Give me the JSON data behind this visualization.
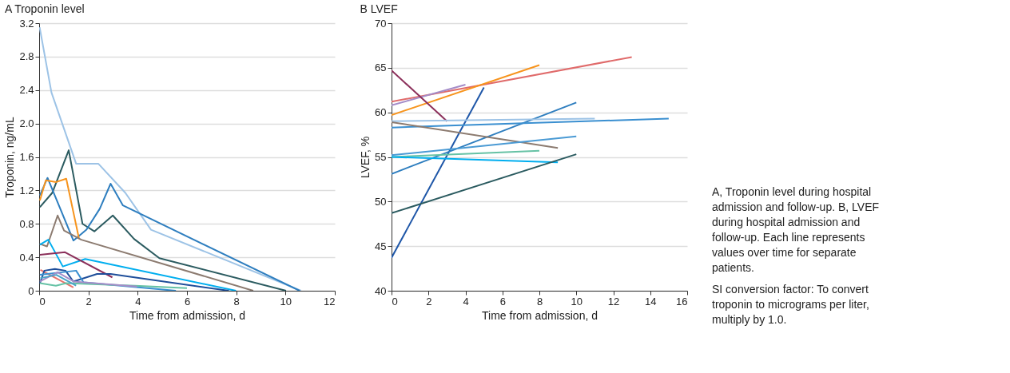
{
  "chart_data": [
    {
      "type": "line",
      "title": "A  Troponin level",
      "xlabel": "Time from admission, d",
      "ylabel": "Troponin, ng/mL",
      "xlim": [
        0,
        12
      ],
      "xticks": [
        0,
        2,
        4,
        6,
        8,
        10,
        12
      ],
      "ylim": [
        0,
        3.2
      ],
      "yticks": [
        0,
        0.4,
        0.8,
        1.2,
        1.6,
        {
          "value": 2,
          "label": "2.0"
        },
        2.4,
        2.8,
        3.2
      ],
      "grid": "y",
      "legend": false,
      "series": [
        {
          "color": "#9dc3e6",
          "x": [
            0.02,
            0.5,
            1.5,
            2.4,
            3.5,
            4.54,
            10.63
          ],
          "values": [
            3.15,
            2.37,
            1.52,
            1.52,
            1.17,
            0.73,
            0
          ]
        },
        {
          "color": "#2b5b60",
          "x": [
            0.03,
            0.53,
            1.2,
            1.76,
            2.24,
            2.99,
            3.85,
            4.88,
            10.02
          ],
          "values": [
            1.0,
            1.17,
            1.68,
            0.8,
            0.71,
            0.9,
            0.62,
            0.39,
            0
          ]
        },
        {
          "color": "#2e7ebf",
          "x": [
            0.03,
            0.34,
            1.39,
            1.92,
            2.46,
            2.9,
            3.4,
            10.57
          ],
          "values": [
            1.14,
            1.35,
            0.6,
            0.73,
            0.98,
            1.28,
            1.02,
            0
          ]
        },
        {
          "color": "#f7941d",
          "x": [
            0.03,
            0.27,
            0.69,
            1.1,
            1.62
          ],
          "values": [
            1.08,
            1.32,
            1.3,
            1.34,
            0.62
          ]
        },
        {
          "color": "#8c7b70",
          "x": [
            0.03,
            0.32,
            0.75,
            1.01,
            1.71,
            8.69
          ],
          "values": [
            0.56,
            0.53,
            0.9,
            0.72,
            0.61,
            0
          ]
        },
        {
          "color": "#00aeef",
          "x": [
            0.03,
            0.37,
            0.96,
            1.87,
            7.99
          ],
          "values": [
            0.55,
            0.61,
            0.29,
            0.38,
            0
          ]
        },
        {
          "color": "#8b2f5a",
          "x": [
            0.03,
            1.05,
            2.97
          ],
          "values": [
            0.43,
            0.46,
            0.16
          ]
        },
        {
          "color": "#e8736c",
          "x": [
            0.05,
            1.39
          ],
          "values": [
            0.25,
            0.04
          ]
        },
        {
          "color": "#1f4e9a",
          "x": [
            0.03,
            0.21,
            0.64,
            1.07,
            1.39,
            2.35,
            2.9,
            7.7
          ],
          "values": [
            0.09,
            0.24,
            0.26,
            0.24,
            0.11,
            0.2,
            0.2,
            0
          ]
        },
        {
          "color": "#3a8fd0",
          "x": [
            0.03,
            1.5,
            1.8,
            5.55
          ],
          "values": [
            0.19,
            0.24,
            0.1,
            0
          ]
        },
        {
          "color": "#66c2a5",
          "x": [
            0.03,
            0.68,
            1.1,
            3.9,
            6.0
          ],
          "values": [
            0.09,
            0.06,
            0.09,
            0.06,
            0.03
          ]
        },
        {
          "color": "#a48cc8",
          "x": [
            0.03,
            0.75,
            1.4,
            3.97
          ],
          "values": [
            0.11,
            0.22,
            0.11,
            0.05
          ]
        },
        {
          "color": "#4aa3c8",
          "x": [
            0.05,
            0.7,
            1.5
          ],
          "values": [
            0.15,
            0.19,
            0.06
          ]
        }
      ]
    },
    {
      "type": "line",
      "title": "B  LVEF",
      "xlabel": "Time from admission, d",
      "ylabel": "LVEF, %",
      "xlim": [
        0,
        16
      ],
      "xticks": [
        0,
        2,
        4,
        6,
        8,
        10,
        12,
        14,
        16
      ],
      "ylim": [
        40,
        70
      ],
      "yticks": [
        40,
        45,
        50,
        55,
        60,
        65,
        70
      ],
      "grid": "y",
      "legend": false,
      "series": [
        {
          "color": "#e06b6b",
          "x": [
            0,
            13
          ],
          "values": [
            61.2,
            66.2
          ]
        },
        {
          "color": "#f7941d",
          "x": [
            0,
            8
          ],
          "values": [
            59.7,
            65.3
          ]
        },
        {
          "color": "#a48cc8",
          "x": [
            0,
            4
          ],
          "values": [
            60.8,
            63.1
          ]
        },
        {
          "color": "#8b2f5a",
          "x": [
            0,
            3
          ],
          "values": [
            64.7,
            59.0
          ]
        },
        {
          "color": "#1f57a8",
          "x": [
            0,
            5
          ],
          "values": [
            43.7,
            62.8
          ]
        },
        {
          "color": "#2e7ebf",
          "x": [
            0,
            10
          ],
          "values": [
            53.1,
            61.1
          ]
        },
        {
          "color": "#9dc3e6",
          "x": [
            0,
            11
          ],
          "values": [
            59.0,
            59.3
          ]
        },
        {
          "color": "#3a8fd0",
          "x": [
            0,
            15
          ],
          "values": [
            58.3,
            59.3
          ]
        },
        {
          "color": "#8c7b70",
          "x": [
            0,
            9
          ],
          "values": [
            58.9,
            56.0
          ]
        },
        {
          "color": "#4a9ad4",
          "x": [
            0,
            10
          ],
          "values": [
            55.2,
            57.3
          ]
        },
        {
          "color": "#66c2a5",
          "x": [
            0,
            8
          ],
          "values": [
            55.0,
            55.7
          ]
        },
        {
          "color": "#00aeef",
          "x": [
            0,
            9
          ],
          "values": [
            55.0,
            54.4
          ]
        },
        {
          "color": "#2b5b60",
          "x": [
            0,
            10
          ],
          "values": [
            48.7,
            55.3
          ]
        }
      ]
    },
    {
      "type": "other",
      "annotations": [
        "A, Troponin level during hospital admission and follow-up. B, LVEF during hospital admission and follow-up. Each line represents values over time for separate patients.",
        "SI conversion factor: To convert troponin to micrograms per liter, multiply by 1.0."
      ]
    }
  ]
}
